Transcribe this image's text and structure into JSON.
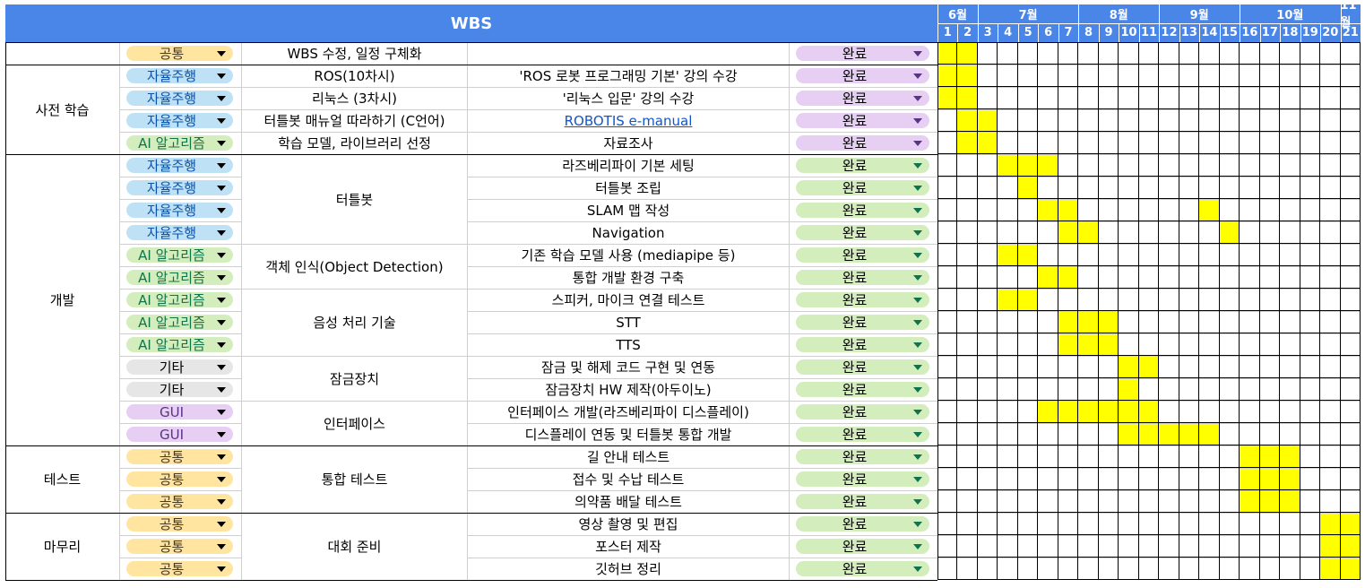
{
  "title": "WBS",
  "months": [
    {
      "label": "6월",
      "start": 1,
      "end": 2
    },
    {
      "label": "7월",
      "start": 3,
      "end": 7
    },
    {
      "label": "8월",
      "start": 8,
      "end": 11
    },
    {
      "label": "9월",
      "start": 12,
      "end": 15
    },
    {
      "label": "10월",
      "start": 16,
      "end": 20
    },
    {
      "label": "11월",
      "start": 21,
      "end": 21
    }
  ],
  "weeks": [
    "1",
    "2",
    "3",
    "4",
    "5",
    "6",
    "7",
    "8",
    "9",
    "10",
    "11",
    "12",
    "13",
    "14",
    "15",
    "16",
    "17",
    "18",
    "19",
    "20",
    "21"
  ],
  "colors": {
    "header": "#4a86e8",
    "highlight": "#ffff00",
    "tag_common_bg": "#ffe5a0",
    "tag_common_fg": "#473821",
    "tag_auto_bg": "#bfe1f6",
    "tag_auto_fg": "#0a53a8",
    "tag_ai_bg": "#d4edbc",
    "tag_ai_fg": "#11734b",
    "tag_etc_bg": "#e6e6e6",
    "tag_etc_fg": "#000000",
    "tag_gui_bg": "#e6cff2",
    "tag_gui_fg": "#5a3286",
    "status_purple_bg": "#e6cff2",
    "status_green_bg": "#d4edbc"
  },
  "phases": [
    {
      "label": "",
      "start": 0,
      "end": 0
    },
    {
      "label": "사전 학습",
      "start": 1,
      "end": 4
    },
    {
      "label": "개발",
      "start": 5,
      "end": 17
    },
    {
      "label": "테스트",
      "start": 18,
      "end": 20
    },
    {
      "label": "마무리",
      "start": 21,
      "end": 23
    }
  ],
  "groups": [
    {
      "label": "WBS 수정, 일정 구체화",
      "start": 0,
      "end": 0
    },
    {
      "label": "ROS(10차시)",
      "start": 1,
      "end": 1
    },
    {
      "label": "리눅스 (3차시)",
      "start": 2,
      "end": 2
    },
    {
      "label": "터틀봇 매뉴얼 따라하기 (C언어)",
      "start": 3,
      "end": 3
    },
    {
      "label": "학습 모델, 라이브러리 선정",
      "start": 4,
      "end": 4
    },
    {
      "label": "터틀봇",
      "start": 5,
      "end": 8
    },
    {
      "label": "객체 인식(Object Detection)",
      "start": 9,
      "end": 10
    },
    {
      "label": "음성 처리 기술",
      "start": 11,
      "end": 13
    },
    {
      "label": "잠금장치",
      "start": 14,
      "end": 15
    },
    {
      "label": "인터페이스",
      "start": 16,
      "end": 17
    },
    {
      "label": "통합 테스트",
      "start": 18,
      "end": 20
    },
    {
      "label": "대회 준비",
      "start": 21,
      "end": 23
    }
  ],
  "rows": [
    {
      "tag": "공통",
      "tag_type": "common",
      "task": "",
      "status": "완료",
      "status_type": "purple",
      "weeks": [
        1,
        2
      ]
    },
    {
      "tag": "자율주행",
      "tag_type": "auto",
      "task": "'ROS 로봇 프로그래밍 기본' 강의 수강",
      "status": "완료",
      "status_type": "purple",
      "weeks": [
        1,
        2
      ]
    },
    {
      "tag": "자율주행",
      "tag_type": "auto",
      "task": "'리눅스 입문' 강의 수강",
      "status": "완료",
      "status_type": "purple",
      "weeks": [
        1,
        2
      ]
    },
    {
      "tag": "자율주행",
      "tag_type": "auto",
      "task": "ROBOTIS e-manual",
      "task_link": true,
      "status": "완료",
      "status_type": "purple",
      "weeks": [
        2,
        3
      ]
    },
    {
      "tag": "AI 알고리즘",
      "tag_type": "ai",
      "task": "자료조사",
      "status": "완료",
      "status_type": "purple",
      "weeks": [
        2,
        3
      ]
    },
    {
      "tag": "자율주행",
      "tag_type": "auto",
      "task": "라즈베리파이 기본 세팅",
      "status": "완료",
      "status_type": "green",
      "weeks": [
        4,
        5,
        6
      ]
    },
    {
      "tag": "자율주행",
      "tag_type": "auto",
      "task": "터틀봇 조립",
      "status": "완료",
      "status_type": "green",
      "weeks": [
        5
      ]
    },
    {
      "tag": "자율주행",
      "tag_type": "auto",
      "task": "SLAM 맵 작성",
      "status": "완료",
      "status_type": "green",
      "weeks": [
        6,
        7,
        14
      ]
    },
    {
      "tag": "자율주행",
      "tag_type": "auto",
      "task": "Navigation",
      "status": "완료",
      "status_type": "green",
      "weeks": [
        7,
        8,
        15
      ]
    },
    {
      "tag": "AI 알고리즘",
      "tag_type": "ai",
      "task": "기존 학습 모델 사용 (mediapipe 등)",
      "status": "완료",
      "status_type": "green",
      "weeks": [
        4,
        5
      ]
    },
    {
      "tag": "AI 알고리즘",
      "tag_type": "ai",
      "task": "통합 개발 환경 구축",
      "status": "완료",
      "status_type": "green",
      "weeks": [
        6,
        7
      ]
    },
    {
      "tag": "AI 알고리즘",
      "tag_type": "ai",
      "task": "스피커, 마이크 연결 테스트",
      "status": "완료",
      "status_type": "green",
      "weeks": [
        4,
        5
      ]
    },
    {
      "tag": "AI 알고리즘",
      "tag_type": "ai",
      "task": "STT",
      "status": "완료",
      "status_type": "green",
      "weeks": [
        7,
        8,
        9
      ]
    },
    {
      "tag": "AI 알고리즘",
      "tag_type": "ai",
      "task": "TTS",
      "status": "완료",
      "status_type": "green",
      "weeks": [
        7,
        8,
        9
      ]
    },
    {
      "tag": "기타",
      "tag_type": "etc",
      "task": "잠금 및 해제 코드 구현 및 연동",
      "status": "완료",
      "status_type": "green",
      "weeks": [
        10,
        11
      ]
    },
    {
      "tag": "기타",
      "tag_type": "etc",
      "task": "잠금장치 HW 제작(아두이노)",
      "status": "완료",
      "status_type": "green",
      "weeks": [
        10
      ]
    },
    {
      "tag": "GUI",
      "tag_type": "gui",
      "task": "인터페이스 개발(라즈베리파이 디스플레이)",
      "status": "완료",
      "status_type": "green",
      "weeks": [
        6,
        7,
        8,
        9,
        10,
        11
      ]
    },
    {
      "tag": "GUI",
      "tag_type": "gui",
      "task": "디스플레이 연동 및 터틀봇 통합 개발",
      "status": "완료",
      "status_type": "green",
      "weeks": [
        10,
        11,
        12,
        13,
        14
      ]
    },
    {
      "tag": "공통",
      "tag_type": "common",
      "task": "길 안내 테스트",
      "status": "완료",
      "status_type": "green",
      "weeks": [
        16,
        17,
        18
      ]
    },
    {
      "tag": "공통",
      "tag_type": "common",
      "task": "접수 및 수납 테스트",
      "status": "완료",
      "status_type": "green",
      "weeks": [
        16,
        17,
        18
      ]
    },
    {
      "tag": "공통",
      "tag_type": "common",
      "task": "의약품 배달 테스트",
      "status": "완료",
      "status_type": "green",
      "weeks": [
        16,
        17,
        18
      ]
    },
    {
      "tag": "공통",
      "tag_type": "common",
      "task": "영상 촬영 및 편집",
      "status": "완료",
      "status_type": "green",
      "weeks": [
        20,
        21
      ]
    },
    {
      "tag": "공통",
      "tag_type": "common",
      "task": "포스터 제작",
      "status": "완료",
      "status_type": "green",
      "weeks": [
        20,
        21
      ]
    },
    {
      "tag": "공통",
      "tag_type": "common",
      "task": "깃허브 정리",
      "status": "완료",
      "status_type": "green",
      "weeks": [
        20,
        21
      ]
    }
  ]
}
